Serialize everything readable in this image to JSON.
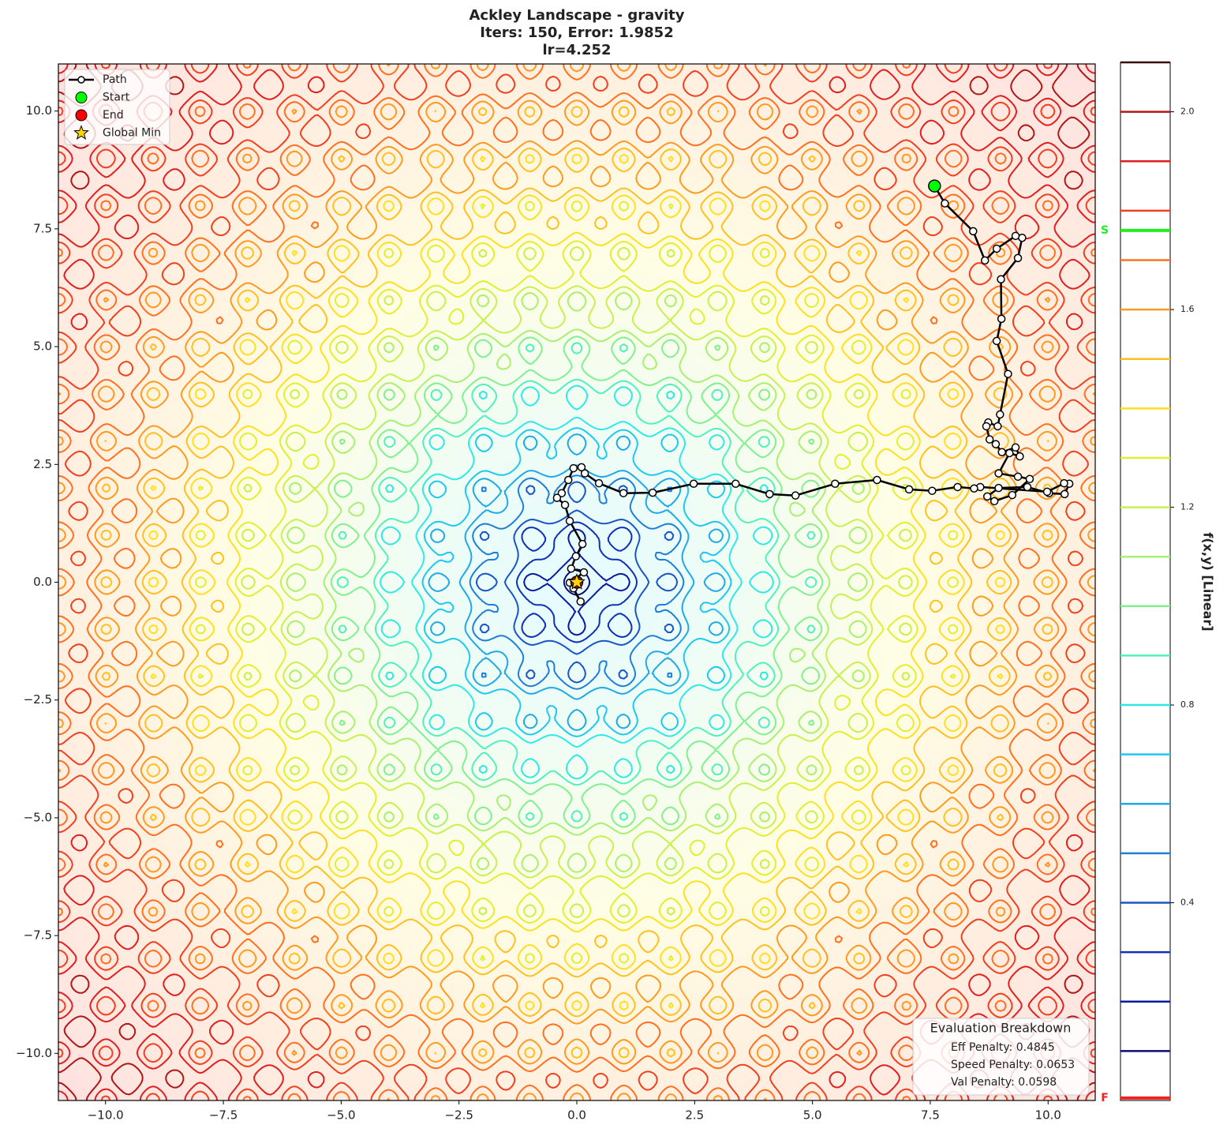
{
  "chart_data": {
    "type": "contour",
    "title": [
      "Ackley Landscape - gravity",
      "Iters: 150, Error: 1.9852",
      "lr=4.252"
    ],
    "xlim": [
      -11,
      11
    ],
    "ylim": [
      -11,
      11
    ],
    "xticks": [
      {
        "value": -10,
        "label": "−10.0"
      },
      {
        "value": -7.5,
        "label": "−7.5"
      },
      {
        "value": -5,
        "label": "−5.0"
      },
      {
        "value": -2.5,
        "label": "−2.5"
      },
      {
        "value": 0,
        "label": "0.0"
      },
      2.5,
      {
        "value": 5,
        "label": "5.0"
      },
      7.5,
      {
        "value": 10,
        "label": "10.0"
      }
    ],
    "yticks": [
      {
        "value": -10,
        "label": "−10.0"
      },
      {
        "value": -7.5,
        "label": "−7.5"
      },
      {
        "value": -5,
        "label": "−5.0"
      },
      {
        "value": -2.5,
        "label": "−2.5"
      },
      {
        "value": 0,
        "label": "0.0"
      },
      2.5,
      {
        "value": 5,
        "label": "5.0"
      },
      7.5,
      {
        "value": 10,
        "label": "10.0"
      }
    ],
    "legend": "upper left",
    "path": {
      "name": "Path",
      "color": "#000000",
      "x": [
        7.59,
        7.81,
        8.41,
        8.66,
        8.91,
        9.31,
        9.45,
        9.36,
        9.0,
        9.01,
        8.91,
        9.15,
        8.98,
        8.93,
        8.73,
        8.69,
        8.76,
        8.89,
        9.02,
        9.31,
        9.4,
        9.18,
        8.95,
        9.36,
        9.61,
        9.24,
        8.86,
        8.71,
        8.95,
        9.56,
        10.02,
        10.35,
        10.45,
        10.34,
        9.98,
        8.56,
        8.43,
        8.08,
        7.54,
        7.05,
        6.37,
        5.48,
        4.64,
        4.09,
        3.37,
        2.48,
        1.61,
        0.99,
        0.47,
        0.17,
        0.1,
        -0.07,
        -0.18,
        -0.32,
        -0.42,
        -0.25,
        -0.15,
        0.12,
        -0.02,
        -0.12,
        0.15,
        -0.15,
        0.08,
        -0.07,
        0.0
      ],
      "y": [
        8.41,
        8.04,
        7.45,
        6.83,
        7.08,
        7.35,
        7.31,
        6.88,
        6.43,
        5.59,
        5.12,
        4.42,
        3.56,
        3.31,
        3.39,
        3.31,
        3.03,
        2.93,
        2.76,
        2.86,
        2.67,
        2.74,
        2.31,
        2.24,
        2.19,
        1.85,
        1.72,
        1.82,
        2.0,
        2.02,
        1.89,
        1.87,
        2.09,
        2.1,
        1.92,
        2.02,
        1.99,
        2.02,
        1.94,
        1.97,
        2.17,
        2.09,
        1.84,
        1.87,
        2.09,
        2.09,
        1.9,
        1.89,
        2.1,
        2.31,
        2.44,
        2.42,
        2.17,
        1.89,
        1.79,
        1.64,
        1.3,
        0.81,
        0.55,
        0.29,
        0.21,
        -0.01,
        -0.41,
        -0.13,
        0.0
      ]
    },
    "markers": [
      {
        "name": "Start",
        "x": 7.59,
        "y": 8.41,
        "color": "#00ff00",
        "symbol": "circle"
      },
      {
        "name": "End",
        "x": 0.0,
        "y": 0.0,
        "color": "#ff0000",
        "symbol": "circle"
      },
      {
        "name": "Global Min",
        "x": 0,
        "y": 0,
        "color": "#ffd700",
        "symbol": "star"
      }
    ],
    "colorbar": {
      "label": "f(x,y) [Linear]",
      "lim": [
        0,
        2.1
      ],
      "ticks": [
        0.4,
        0.8,
        1.2,
        1.6,
        {
          "value": 2.0,
          "label": "2.0"
        }
      ],
      "levels": [
        0.1,
        0.2,
        0.3,
        0.4,
        0.5,
        0.6,
        0.7,
        0.8,
        0.9,
        1.0,
        1.1,
        1.2,
        1.3,
        1.4,
        1.5,
        1.6,
        1.7,
        1.8,
        1.9,
        2.0,
        2.1
      ],
      "colors": [
        "#0d0d73",
        "#0a1a9e",
        "#1030b8",
        "#1a55c8",
        "#1f7fd8",
        "#20a8e8",
        "#1ec8f0",
        "#30e8e8",
        "#50f0c0",
        "#80f090",
        "#a8f070",
        "#c8f050",
        "#e0f030",
        "#ffe020",
        "#ffc020",
        "#ff9a20",
        "#ff7020",
        "#f04020",
        "#e02020",
        "#b01818",
        "#3a0a0a"
      ],
      "markers": [
        {
          "label": "S",
          "value": 1.76,
          "color": "#22ee22"
        },
        {
          "label": "F",
          "value": 0.005,
          "color": "#ee2222"
        }
      ]
    },
    "annotation": {
      "title": "Evaluation Breakdown",
      "lines": [
        "Eff Penalty: 0.4845",
        "Speed Penalty: 0.0653",
        "Val Penalty: 0.0598"
      ]
    }
  }
}
